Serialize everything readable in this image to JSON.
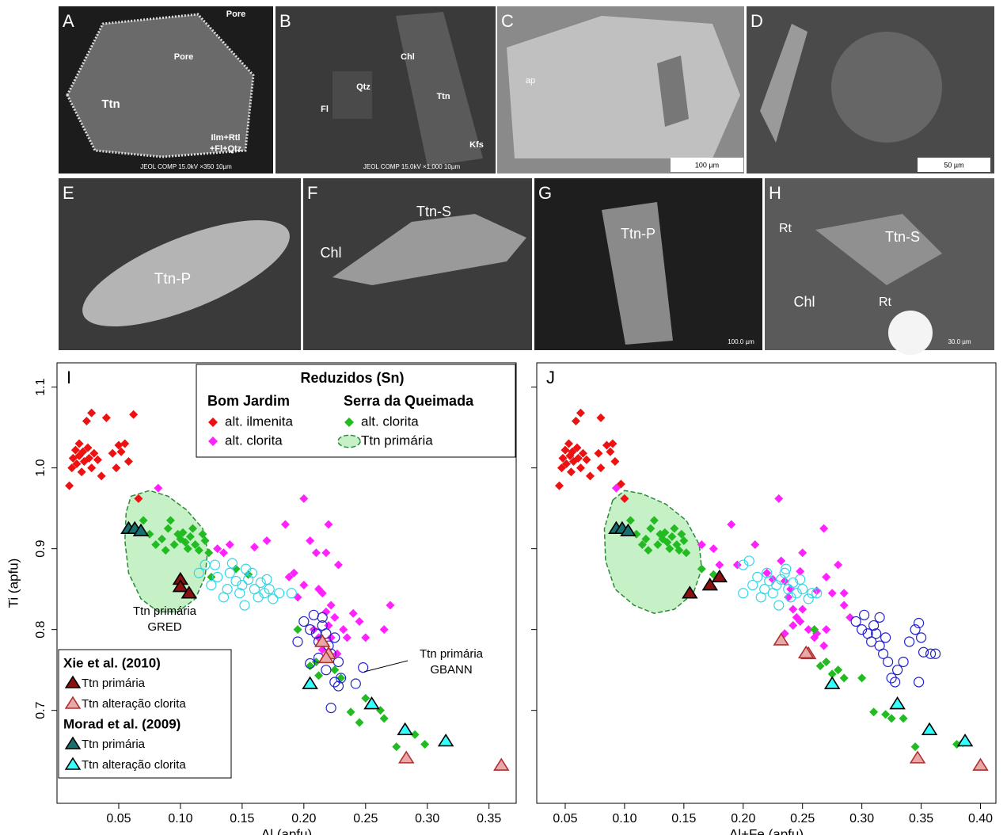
{
  "panels": [
    {
      "label": "A",
      "notes": [
        "Pore",
        "Pore",
        "Ttn",
        "Ilm+Rtl",
        "+Fl+Qtz",
        "JEOL COMP 15.0kV ×350 10µm"
      ]
    },
    {
      "label": "B",
      "notes": [
        "Chl",
        "Qtz",
        "Ttn",
        "Fl",
        "Kfs",
        "JEOL COMP 15.0kV ×1,000 10µm"
      ]
    },
    {
      "label": "C",
      "notes": [
        "ap",
        "100 µm"
      ]
    },
    {
      "label": "D",
      "notes": [
        "50 µm"
      ]
    },
    {
      "label": "E",
      "notes": [
        "Ttn-P"
      ]
    },
    {
      "label": "F",
      "notes": [
        "Chl",
        "Ttn-S"
      ]
    },
    {
      "label": "G",
      "notes": [
        "Ttn-P",
        "100.0 µm"
      ]
    },
    {
      "label": "H",
      "notes": [
        "Rt",
        "Ttn-S",
        "Chl",
        "Rt",
        "30.0 µm"
      ]
    }
  ],
  "chart_data": [
    {
      "type": "scatter",
      "label": "I",
      "xlabel": "Al (apfu)",
      "ylabel": "Ti (apfu)",
      "xlim": [
        0,
        0.372
      ],
      "ylim": [
        0.585,
        1.13
      ],
      "xticks": [
        0.05,
        {
          "value": 0.1,
          "label": "0.10"
        },
        0.15,
        {
          "value": 0.2,
          "label": "0.20"
        },
        0.25,
        {
          "value": 0.3,
          "label": "0.30"
        },
        0.35
      ],
      "yticks": [
        0.7,
        0.8,
        0.9,
        {
          "value": 1.0,
          "label": "1.0"
        },
        1.1
      ],
      "show_ytick_labels": true,
      "legend_title": "Reduzidos (Sn)",
      "annotations": [
        {
          "lines": [
            "Ttn primária",
            "GRED"
          ]
        },
        {
          "lines": [
            "Ttn primária",
            "GBANN"
          ]
        }
      ],
      "series": [
        {
          "name": "alt. ilmenita",
          "group": "Bom Jardim",
          "legend_loc": "upper center",
          "marker": "diamond",
          "color": "#ee1111",
          "x": [
            0.01,
            0.012,
            0.013,
            0.015,
            0.016,
            0.018,
            0.018,
            0.02,
            0.021,
            0.022,
            0.024,
            0.025,
            0.026,
            0.028,
            0.028,
            0.03,
            0.033,
            0.036,
            0.04,
            0.045,
            0.048,
            0.05,
            0.052,
            0.055,
            0.058,
            0.062,
            0.066
          ],
          "y": [
            0.978,
            1.0,
            1.012,
            1.022,
            1.005,
            1.03,
            1.015,
            0.995,
            1.02,
            1.008,
            1.058,
            1.025,
            1.012,
            1.068,
            1.0,
            1.018,
            1.01,
            0.99,
            1.062,
            1.018,
            1.0,
            1.028,
            1.02,
            1.03,
            1.008,
            1.066,
            0.962
          ]
        },
        {
          "name": "alt. clorita",
          "group": "Bom Jardim",
          "legend_loc": "upper center",
          "marker": "diamond",
          "color": "#ff22ff",
          "x": [
            0.082,
            0.13,
            0.135,
            0.14,
            0.16,
            0.17,
            0.185,
            0.188,
            0.192,
            0.2,
            0.205,
            0.21,
            0.212,
            0.215,
            0.218,
            0.22,
            0.218,
            0.222,
            0.225,
            0.228,
            0.208,
            0.212,
            0.215,
            0.22,
            0.232,
            0.235,
            0.24,
            0.245,
            0.25,
            0.265,
            0.27,
            0.222,
            0.227,
            0.195,
            0.2
          ],
          "y": [
            0.975,
            0.9,
            0.895,
            0.905,
            0.902,
            0.91,
            0.93,
            0.865,
            0.87,
            0.962,
            0.91,
            0.895,
            0.85,
            0.845,
            0.895,
            0.93,
            0.822,
            0.83,
            0.815,
            0.88,
            0.8,
            0.79,
            0.775,
            0.805,
            0.8,
            0.79,
            0.82,
            0.81,
            0.79,
            0.8,
            0.83,
            0.79,
            0.77,
            0.84,
            0.855
          ]
        },
        {
          "name": "alt. clorita",
          "group": "Serra da Queimada",
          "legend_loc": "upper center",
          "marker": "diamond",
          "color": "#22bb22",
          "x": [
            0.07,
            0.075,
            0.08,
            0.085,
            0.088,
            0.09,
            0.092,
            0.095,
            0.098,
            0.1,
            0.102,
            0.104,
            0.106,
            0.108,
            0.11,
            0.112,
            0.115,
            0.118,
            0.12,
            0.123,
            0.125,
            0.145,
            0.155,
            0.195,
            0.205,
            0.21,
            0.212,
            0.225,
            0.23,
            0.238,
            0.245,
            0.25,
            0.262,
            0.265,
            0.275,
            0.29,
            0.298
          ],
          "y": [
            0.935,
            0.918,
            0.905,
            0.912,
            0.898,
            0.925,
            0.935,
            0.905,
            0.918,
            0.912,
            0.92,
            0.908,
            0.9,
            0.915,
            0.925,
            0.905,
            0.898,
            0.918,
            0.91,
            0.895,
            0.865,
            0.875,
            0.868,
            0.8,
            0.755,
            0.76,
            0.743,
            0.75,
            0.74,
            0.698,
            0.685,
            0.715,
            0.7,
            0.69,
            0.655,
            0.67,
            0.658
          ]
        },
        {
          "name": "Ttn primária",
          "group": "Serra da Queimada",
          "legend_loc": "upper center",
          "marker": "region",
          "color": "#c6f0c6",
          "edgecolor": "#2a8a3a",
          "x": [
            0.06,
            0.075,
            0.09,
            0.105,
            0.118,
            0.122,
            0.12,
            0.112,
            0.098,
            0.082,
            0.068,
            0.058,
            0.055,
            0.056
          ],
          "y": [
            0.965,
            0.972,
            0.965,
            0.948,
            0.925,
            0.898,
            0.865,
            0.838,
            0.822,
            0.822,
            0.838,
            0.87,
            0.91,
            0.945
          ]
        },
        {
          "marker": "circle",
          "color": "#33d6e6",
          "x": [
            0.115,
            0.12,
            0.125,
            0.13,
            0.135,
            0.138,
            0.14,
            0.142,
            0.145,
            0.148,
            0.15,
            0.152,
            0.155,
            0.158,
            0.16,
            0.163,
            0.165,
            0.168,
            0.17,
            0.172,
            0.175,
            0.18,
            0.19,
            0.128,
            0.153
          ],
          "y": [
            0.87,
            0.88,
            0.855,
            0.865,
            0.84,
            0.85,
            0.87,
            0.882,
            0.86,
            0.845,
            0.855,
            0.83,
            0.862,
            0.87,
            0.85,
            0.84,
            0.858,
            0.845,
            0.862,
            0.85,
            0.838,
            0.845,
            0.845,
            0.88,
            0.875
          ]
        },
        {
          "marker": "circle",
          "color": "#2222cc",
          "x": [
            0.2,
            0.205,
            0.208,
            0.21,
            0.212,
            0.215,
            0.218,
            0.22,
            0.222,
            0.225,
            0.228,
            0.23,
            0.225,
            0.222,
            0.205,
            0.212,
            0.195,
            0.218,
            0.228,
            0.242,
            0.248,
            0.215
          ],
          "y": [
            0.81,
            0.8,
            0.818,
            0.795,
            0.785,
            0.805,
            0.795,
            0.78,
            0.77,
            0.79,
            0.76,
            0.74,
            0.735,
            0.703,
            0.758,
            0.765,
            0.785,
            0.75,
            0.73,
            0.733,
            0.753,
            0.815
          ]
        },
        {
          "name": "Ttn primária",
          "group": "Xie et al. (2010)",
          "legend_loc": "lower left",
          "marker": "triangle",
          "color": "#8b1010",
          "edgecolor": "#000000",
          "x": [
            0.1,
            0.1,
            0.107
          ],
          "y": [
            0.862,
            0.853,
            0.845
          ]
        },
        {
          "name": "Ttn alteração clorita",
          "group": "Xie et al. (2010)",
          "legend_loc": "lower left",
          "marker": "triangle",
          "color": "#e8a8a8",
          "edgecolor": "#b03030",
          "x": [
            0.215,
            0.22,
            0.218,
            0.283,
            0.36
          ],
          "y": [
            0.785,
            0.77,
            0.765,
            0.641,
            0.632
          ]
        },
        {
          "name": "Ttn primária",
          "group": "Morad et al. (2009)",
          "legend_loc": "lower left",
          "marker": "triangle",
          "color": "#1a7070",
          "edgecolor": "#000000",
          "x": [
            0.058,
            0.063,
            0.068
          ],
          "y": [
            0.925,
            0.925,
            0.922
          ]
        },
        {
          "name": "Ttn alteração clorita",
          "group": "Morad et al. (2009)",
          "legend_loc": "lower left",
          "marker": "triangle",
          "color": "#33ffff",
          "edgecolor": "#000000",
          "x": [
            0.205,
            0.255,
            0.282,
            0.315
          ],
          "y": [
            0.733,
            0.708,
            0.676,
            0.662
          ]
        }
      ]
    },
    {
      "type": "scatter",
      "label": "J",
      "xlabel": "Al+Fe (apfu)",
      "xlim": [
        0.026,
        0.413
      ],
      "ylim": [
        0.585,
        1.13
      ],
      "xticks": [
        0.05,
        {
          "value": 0.1,
          "label": "0.10"
        },
        0.15,
        {
          "value": 0.2,
          "label": "0.20"
        },
        0.25,
        {
          "value": 0.3,
          "label": "0.30"
        },
        0.35,
        {
          "value": 0.4,
          "label": "0.40"
        }
      ],
      "yticks": [
        0.7,
        0.8,
        0.9,
        1.0,
        1.1
      ],
      "show_ytick_labels": false,
      "series": [
        {
          "marker": "diamond",
          "color": "#ee1111",
          "x": [
            0.045,
            0.047,
            0.048,
            0.05,
            0.051,
            0.053,
            0.054,
            0.055,
            0.056,
            0.057,
            0.059,
            0.06,
            0.061,
            0.063,
            0.063,
            0.065,
            0.068,
            0.071,
            0.08,
            0.078,
            0.08,
            0.085,
            0.088,
            0.09,
            0.092,
            0.097,
            0.1
          ],
          "y": [
            0.978,
            1.0,
            1.012,
            1.022,
            1.005,
            1.03,
            1.015,
            0.995,
            1.02,
            1.008,
            1.058,
            1.025,
            1.012,
            1.068,
            1.0,
            1.018,
            1.01,
            0.99,
            1.062,
            1.018,
            1.0,
            1.028,
            1.02,
            1.03,
            1.008,
            0.98,
            0.962
          ]
        },
        {
          "marker": "diamond",
          "color": "#ff22ff",
          "x": [
            0.093,
            0.165,
            0.175,
            0.18,
            0.19,
            0.195,
            0.21,
            0.22,
            0.225,
            0.23,
            0.232,
            0.235,
            0.238,
            0.24,
            0.242,
            0.245,
            0.248,
            0.25,
            0.235,
            0.242,
            0.25,
            0.255,
            0.26,
            0.262,
            0.268,
            0.27,
            0.275,
            0.28,
            0.285,
            0.248,
            0.262,
            0.268,
            0.27,
            0.285,
            0.29
          ],
          "y": [
            0.975,
            0.905,
            0.9,
            0.88,
            0.93,
            0.88,
            0.905,
            0.87,
            0.862,
            0.962,
            0.885,
            0.86,
            0.84,
            0.85,
            0.825,
            0.815,
            0.872,
            0.895,
            0.795,
            0.805,
            0.825,
            0.8,
            0.79,
            0.848,
            0.925,
            0.865,
            0.845,
            0.88,
            0.845,
            0.81,
            0.795,
            0.78,
            0.8,
            0.83,
            0.815
          ]
        },
        {
          "marker": "diamond",
          "color": "#22bb22",
          "x": [
            0.105,
            0.11,
            0.115,
            0.118,
            0.12,
            0.122,
            0.125,
            0.128,
            0.13,
            0.132,
            0.134,
            0.136,
            0.138,
            0.14,
            0.142,
            0.144,
            0.146,
            0.148,
            0.15,
            0.152,
            0.165,
            0.175,
            0.26,
            0.265,
            0.27,
            0.275,
            0.28,
            0.285,
            0.3,
            0.31,
            0.32,
            0.325,
            0.335,
            0.345,
            0.38,
            0.385
          ],
          "y": [
            0.935,
            0.918,
            0.905,
            0.912,
            0.898,
            0.925,
            0.935,
            0.905,
            0.918,
            0.912,
            0.92,
            0.908,
            0.9,
            0.915,
            0.925,
            0.905,
            0.898,
            0.918,
            0.91,
            0.895,
            0.875,
            0.868,
            0.8,
            0.755,
            0.76,
            0.745,
            0.75,
            0.74,
            0.74,
            0.698,
            0.695,
            0.69,
            0.69,
            0.655,
            0.658,
            0.66
          ]
        },
        {
          "marker": "region",
          "color": "#c6f0c6",
          "edgecolor": "#2a8a3a",
          "x": [
            0.09,
            0.1,
            0.115,
            0.135,
            0.152,
            0.163,
            0.165,
            0.158,
            0.142,
            0.125,
            0.108,
            0.092,
            0.084,
            0.083
          ],
          "y": [
            0.96,
            0.972,
            0.968,
            0.955,
            0.935,
            0.905,
            0.875,
            0.845,
            0.825,
            0.82,
            0.83,
            0.85,
            0.885,
            0.925
          ]
        },
        {
          "marker": "circle",
          "color": "#33d6e6",
          "x": [
            0.2,
            0.205,
            0.208,
            0.212,
            0.215,
            0.218,
            0.22,
            0.222,
            0.225,
            0.228,
            0.23,
            0.232,
            0.235,
            0.238,
            0.24,
            0.242,
            0.245,
            0.248,
            0.25,
            0.255,
            0.258,
            0.262,
            0.2,
            0.236
          ],
          "y": [
            0.88,
            0.885,
            0.855,
            0.865,
            0.84,
            0.85,
            0.87,
            0.86,
            0.845,
            0.855,
            0.83,
            0.862,
            0.87,
            0.85,
            0.84,
            0.858,
            0.845,
            0.862,
            0.85,
            0.838,
            0.845,
            0.845,
            0.845,
            0.875
          ]
        },
        {
          "marker": "circle",
          "color": "#2222cc",
          "x": [
            0.295,
            0.3,
            0.302,
            0.305,
            0.308,
            0.31,
            0.312,
            0.315,
            0.318,
            0.32,
            0.322,
            0.325,
            0.328,
            0.33,
            0.335,
            0.34,
            0.345,
            0.348,
            0.35,
            0.352,
            0.348,
            0.358,
            0.362,
            0.315
          ],
          "y": [
            0.81,
            0.8,
            0.818,
            0.795,
            0.785,
            0.805,
            0.795,
            0.78,
            0.77,
            0.79,
            0.76,
            0.74,
            0.735,
            0.75,
            0.76,
            0.785,
            0.8,
            0.808,
            0.79,
            0.772,
            0.735,
            0.77,
            0.77,
            0.815
          ]
        },
        {
          "marker": "triangle",
          "color": "#8b1010",
          "edgecolor": "#000000",
          "x": [
            0.155,
            0.172,
            0.18
          ],
          "y": [
            0.845,
            0.855,
            0.865
          ]
        },
        {
          "marker": "triangle",
          "color": "#e8a8a8",
          "edgecolor": "#b03030",
          "x": [
            0.232,
            0.255,
            0.253,
            0.347,
            0.4
          ],
          "y": [
            0.787,
            0.77,
            0.771,
            0.641,
            0.632
          ]
        },
        {
          "marker": "triangle",
          "color": "#1a7070",
          "edgecolor": "#000000",
          "x": [
            0.093,
            0.098,
            0.103
          ],
          "y": [
            0.925,
            0.925,
            0.922
          ]
        },
        {
          "marker": "triangle",
          "color": "#33ffff",
          "edgecolor": "#000000",
          "x": [
            0.275,
            0.33,
            0.357,
            0.387
          ],
          "y": [
            0.733,
            0.708,
            0.676,
            0.662
          ]
        }
      ]
    }
  ]
}
